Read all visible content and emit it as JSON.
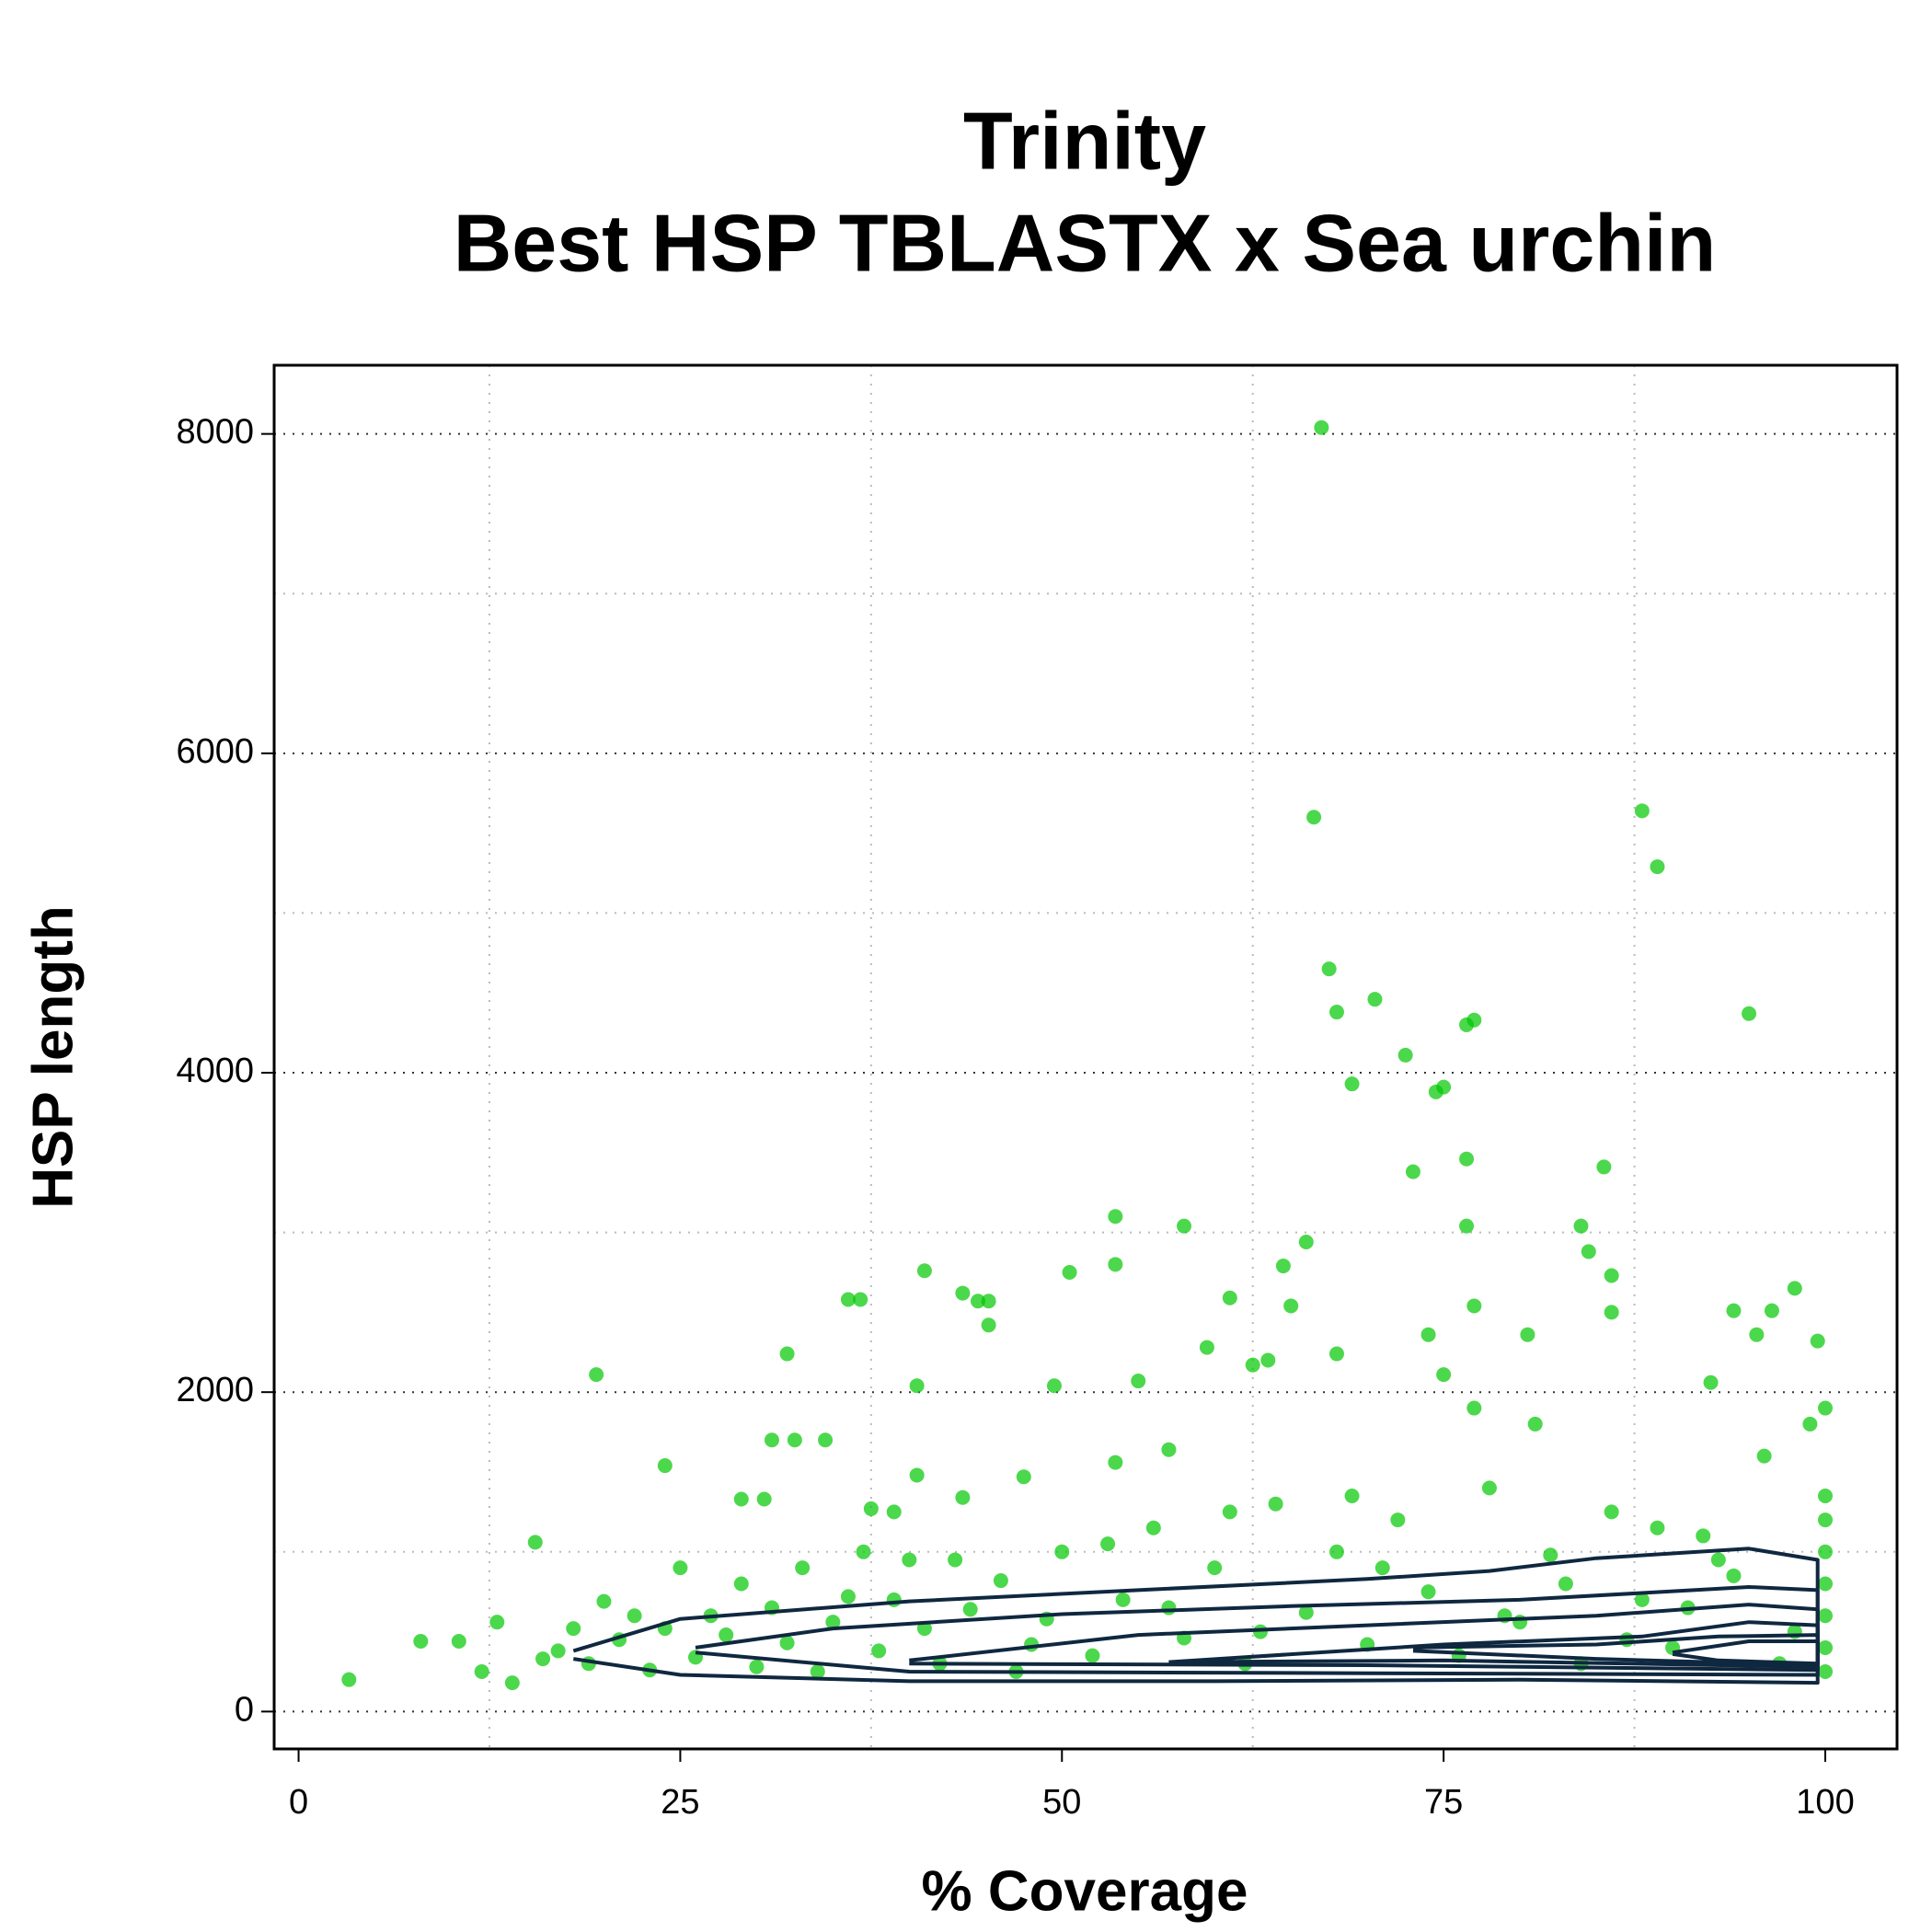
{
  "chart_data": {
    "type": "scatter",
    "title": [
      "Trinity",
      "Best HSP TBLASTX x Sea urchin"
    ],
    "x_label": "% Coverage",
    "y_label": "HSP length",
    "xlim": [
      -1.6,
      104.7
    ],
    "ylim": [
      -234,
      8430
    ],
    "xticks": [
      0,
      25,
      50,
      75,
      100
    ],
    "yticks": [
      0,
      2000,
      4000,
      6000,
      8000
    ],
    "x_minor_grid": [
      12.5,
      37.5,
      62.5,
      87.5
    ],
    "y_minor_grid": [
      1000,
      3000,
      5000,
      7000
    ],
    "grid": true,
    "color": "#00c800",
    "contour_color": "#0f2840",
    "x": [
      3.3,
      8,
      10.5,
      15.5,
      19.5,
      24,
      31,
      32.5,
      34.5,
      32,
      36,
      36.8,
      40.5,
      41,
      43.5,
      44.5,
      45.2,
      45.2,
      49.5,
      50.5,
      53.5,
      53.5,
      55,
      58,
      59.5,
      61,
      62.5,
      63.5,
      64.5,
      65,
      66,
      66.5,
      67,
      67.5,
      68,
      68,
      69,
      70.5,
      72.5,
      73,
      74,
      74.5,
      75,
      76.5,
      77,
      76.5,
      76.5,
      77,
      80.5,
      84,
      84.5,
      85.5,
      86,
      86,
      88,
      89,
      94,
      95,
      96.5,
      98,
      99.5,
      95.5,
      92.5,
      29,
      30.5,
      37.5,
      39,
      40.5,
      43.5,
      47.5,
      53.5,
      57,
      75,
      17,
      18,
      19,
      20,
      21,
      22,
      23,
      24,
      25,
      26,
      27,
      28,
      29,
      30,
      31,
      32,
      33,
      34,
      35,
      36,
      38,
      40,
      42,
      44,
      46,
      48,
      50,
      52,
      54,
      56,
      58,
      60,
      62,
      64,
      66,
      68,
      70,
      72,
      74,
      76,
      78,
      80,
      82,
      84,
      86,
      88,
      90,
      92,
      94,
      96,
      98,
      100,
      100,
      100,
      100,
      100,
      100,
      100,
      100,
      12,
      13,
      14,
      16,
      99,
      97,
      93,
      91,
      89,
      87,
      83,
      81,
      79,
      77,
      71,
      69,
      63,
      61,
      57,
      53,
      49,
      47,
      43,
      41,
      39,
      37
    ],
    "values": [
      200,
      440,
      440,
      1060,
      2110,
      1540,
      1700,
      1700,
      1700,
      2240,
      2580,
      2580,
      2040,
      2760,
      2620,
      2570,
      2570,
      2420,
      2040,
      2750,
      3100,
      2800,
      2070,
      3040,
      2280,
      2590,
      2170,
      2200,
      2790,
      2540,
      2940,
      5600,
      8040,
      4650,
      4380,
      2240,
      3930,
      4460,
      4110,
      3380,
      2360,
      3880,
      3910,
      4300,
      4330,
      3460,
      3040,
      2540,
      2360,
      3040,
      2880,
      3410,
      2730,
      2500,
      5640,
      5290,
      2510,
      4370,
      2510,
      2650,
      2320,
      2360,
      2060,
      1330,
      1330,
      1270,
      1250,
      1480,
      1340,
      1470,
      1560,
      1640,
      2110,
      380,
      520,
      300,
      690,
      450,
      600,
      260,
      520,
      900,
      340,
      600,
      480,
      800,
      280,
      650,
      430,
      900,
      250,
      560,
      720,
      380,
      950,
      300,
      640,
      820,
      420,
      1000,
      350,
      700,
      1150,
      460,
      900,
      300,
      1300,
      620,
      1000,
      420,
      1200,
      750,
      350,
      1400,
      560,
      980,
      300,
      1250,
      700,
      400,
      1100,
      850,
      1600,
      500,
      1350,
      1200,
      1000,
      800,
      600,
      400,
      250,
      1900,
      250,
      560,
      180,
      330,
      1800,
      300,
      950,
      650,
      1150,
      450,
      800,
      1800,
      600,
      1900,
      900,
      1350,
      500,
      1250,
      650,
      1050,
      580,
      250,
      950,
      520,
      700,
      1000
    ],
    "contours": [
      {
        "x": [
          18,
          25,
          40,
          55,
          70,
          78,
          85,
          95,
          99.5,
          99.5,
          80,
          60,
          40,
          25,
          18
        ],
        "y": [
          380,
          580,
          690,
          760,
          830,
          880,
          960,
          1020,
          950,
          180,
          200,
          190,
          190,
          230,
          330
        ]
      },
      {
        "x": [
          26,
          35,
          50,
          65,
          80,
          95,
          99.5,
          99.5,
          70,
          40,
          26
        ],
        "y": [
          400,
          520,
          610,
          660,
          700,
          780,
          760,
          230,
          240,
          250,
          370
        ]
      },
      {
        "x": [
          40,
          55,
          70,
          85,
          95,
          99.5,
          99.5,
          70,
          40
        ],
        "y": [
          320,
          480,
          540,
          600,
          670,
          640,
          260,
          290,
          300
        ]
      },
      {
        "x": [
          57,
          75,
          88,
          95,
          99.5,
          99.5,
          75,
          57
        ],
        "y": [
          310,
          420,
          470,
          560,
          540,
          280,
          320,
          310
        ]
      },
      {
        "x": [
          73,
          85,
          93,
          99.5,
          99.5,
          85,
          73
        ],
        "y": [
          400,
          420,
          470,
          480,
          290,
          330,
          380
        ]
      },
      {
        "x": [
          90,
          95,
          99.5,
          99.5,
          93,
          90
        ],
        "y": [
          370,
          440,
          440,
          300,
          320,
          360
        ]
      }
    ]
  }
}
